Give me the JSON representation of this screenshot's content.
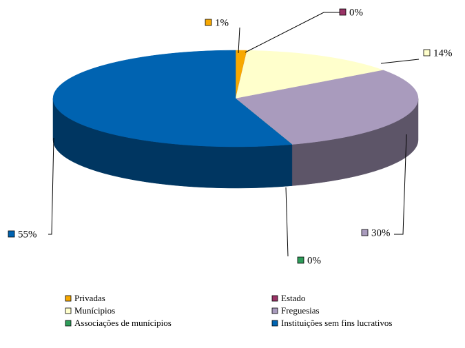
{
  "chart_data": {
    "type": "pie",
    "categories": [
      "Privadas",
      "Estado",
      "Munícipios",
      "Freguesias",
      "Associações de munícipios",
      "Instituições sem fins lucrativos"
    ],
    "values": [
      1,
      0,
      14,
      30,
      0,
      55
    ],
    "value_labels": [
      "1%",
      "0%",
      "14%",
      "30%",
      "0%",
      "55%"
    ],
    "colors": [
      "#f7a800",
      "#993366",
      "#ffffcc",
      "#a99bbd",
      "#2e9d5a",
      "#0063b1"
    ],
    "legend": "bottom"
  }
}
